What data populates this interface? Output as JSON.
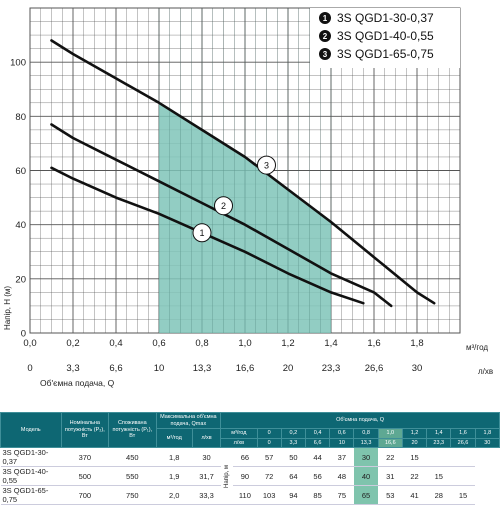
{
  "chart_data": {
    "type": "line",
    "xlabel_primary": "м³/год",
    "xlabel_secondary": "л/хв",
    "xlabel_bottom": "Об'ємна подача, Q",
    "ylabel": "Напір, H (м)",
    "xlim": [
      0,
      2.0
    ],
    "ylim": [
      0,
      120
    ],
    "x_ticks": [
      "0,0",
      "0,2",
      "0,4",
      "0,6",
      "0,8",
      "1,0",
      "1,2",
      "1,4",
      "1,6",
      "1,8"
    ],
    "x_ticks_values": [
      0,
      0.2,
      0.4,
      0.6,
      0.8,
      1.0,
      1.2,
      1.4,
      1.6,
      1.8
    ],
    "x2_ticks": [
      "0",
      "3,3",
      "6,6",
      "10",
      "13,3",
      "16,6",
      "20",
      "23,3",
      "26,6",
      "30"
    ],
    "y_ticks": [
      "0",
      "20",
      "40",
      "60",
      "80",
      "100"
    ],
    "y_ticks_values": [
      0,
      20,
      40,
      60,
      80,
      100
    ],
    "grid": true,
    "shaded_region": {
      "x": [
        0.6,
        1.4
      ],
      "color": "#7fc4b8"
    },
    "series": [
      {
        "name": "3S QGD1-30-0,37",
        "marker": "1",
        "x": [
          0.1,
          0.2,
          0.4,
          0.6,
          0.8,
          1.0,
          1.2,
          1.4,
          1.55
        ],
        "y": [
          61,
          57,
          50,
          44,
          37,
          30,
          22,
          15,
          11
        ]
      },
      {
        "name": "3S QGD1-40-0,55",
        "marker": "2",
        "x": [
          0.1,
          0.2,
          0.4,
          0.6,
          0.8,
          1.0,
          1.2,
          1.4,
          1.6,
          1.68
        ],
        "y": [
          77,
          72,
          64,
          56,
          48,
          40,
          31,
          22,
          15,
          10
        ]
      },
      {
        "name": "3S QGD1-65-0,75",
        "marker": "3",
        "x": [
          0.1,
          0.2,
          0.4,
          0.6,
          0.8,
          1.0,
          1.2,
          1.4,
          1.6,
          1.8,
          1.88
        ],
        "y": [
          108,
          103,
          94,
          85,
          75,
          65,
          53,
          41,
          28,
          15,
          11
        ]
      }
    ],
    "marker_positions": [
      {
        "label": "1",
        "x": 0.8,
        "y": 37
      },
      {
        "label": "2",
        "x": 0.9,
        "y": 47
      },
      {
        "label": "3",
        "x": 1.1,
        "y": 62
      }
    ],
    "colors": {
      "curve": "#111111",
      "shade": "#7fc4b8",
      "grid": "#555555",
      "badge": "#111111"
    }
  },
  "legend": [
    {
      "num": "1",
      "label": "3S QGD1-30-0,37"
    },
    {
      "num": "2",
      "label": "3S QGD1-40-0,55"
    },
    {
      "num": "3",
      "label": "3S QGD1-65-0,75"
    }
  ],
  "table": {
    "headers": {
      "model": "Модель",
      "power_nom": "Номінальна потужність (P₂), Вт",
      "power_cons": "Споживана потужність (P₁), Вт",
      "flow_max": "Максимальна об'ємна подача, Qmax",
      "flow_group": "Об'ємна подача, Q",
      "unit_m3": "м³/год",
      "unit_lmin": "л/хв",
      "head_unit": "Напір, м"
    },
    "q_m3h": [
      "0",
      "0,2",
      "0,4",
      "0,6",
      "0,8",
      "1,0",
      "1,2",
      "1,4",
      "1,6",
      "1,8"
    ],
    "q_lmin": [
      "0",
      "3,3",
      "6,6",
      "10",
      "13,3",
      "16,6",
      "20",
      "23,3",
      "26,6",
      "30"
    ],
    "rows": [
      {
        "model": "3S QGD1-30-0,37",
        "p2": "370",
        "p1": "450",
        "qmax_m3": "1,8",
        "qmax_l": "30",
        "heads": [
          "66",
          "57",
          "50",
          "44",
          "37",
          "30",
          "22",
          "15",
          "",
          ""
        ]
      },
      {
        "model": "3S QGD1-40-0,55",
        "p2": "500",
        "p1": "550",
        "qmax_m3": "1,9",
        "qmax_l": "31,7",
        "heads": [
          "90",
          "72",
          "64",
          "56",
          "48",
          "40",
          "31",
          "22",
          "15",
          ""
        ]
      },
      {
        "model": "3S QGD1-65-0,75",
        "p2": "700",
        "p1": "750",
        "qmax_m3": "2,0",
        "qmax_l": "33,3",
        "heads": [
          "110",
          "103",
          "94",
          "85",
          "75",
          "65",
          "53",
          "41",
          "28",
          "15"
        ]
      }
    ]
  }
}
